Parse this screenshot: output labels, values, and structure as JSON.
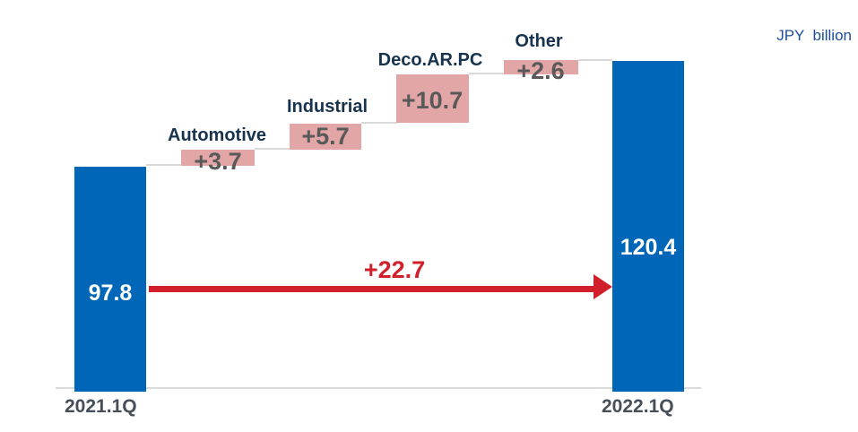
{
  "unit_label": "JPY  billion",
  "colors": {
    "bar_blue": "#0067b8",
    "delta_pink": "#e3a6a7",
    "delta_value_text": "#595959",
    "category_label_navy": "#17334e",
    "axis_label_gray": "#464e58",
    "arrow_red": "#d11f2c",
    "unit_label_blue": "#1d4fa0",
    "baseline_gray": "#d9d9d9",
    "bar_value_text": "#ffffff"
  },
  "chart_data": {
    "type": "waterfall",
    "title": "",
    "unit": "JPY billion",
    "legend": "none",
    "grid": false,
    "start": {
      "label": "2021.1Q",
      "value": 97.8,
      "value_label": "97.8"
    },
    "end": {
      "label": "2022.1Q",
      "value": 120.4,
      "value_label": "120.4"
    },
    "deltas": [
      {
        "category": "Automotive",
        "value": 3.7,
        "label": "+3.7"
      },
      {
        "category": "Industrial",
        "value": 5.7,
        "label": "+5.7"
      },
      {
        "category": "Deco.AR.PC",
        "value": 10.7,
        "label": "+10.7"
      },
      {
        "category": "Other",
        "value": 2.6,
        "label": "+2.6"
      }
    ],
    "total_change": {
      "value": 22.7,
      "label": "+22.7"
    }
  }
}
